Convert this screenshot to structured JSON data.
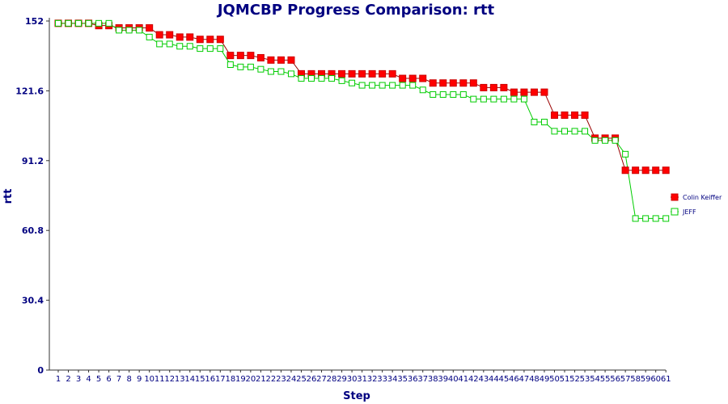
{
  "chart_data": {
    "type": "line",
    "title": "JQMCBP Progress Comparison: rtt",
    "xlabel": "Step",
    "ylabel": "rtt",
    "ylim": [
      0,
      152
    ],
    "yticks": [
      "0",
      "30.4",
      "60.8",
      "91.2",
      "121.6",
      "152"
    ],
    "ytick_values": [
      0,
      30.4,
      60.8,
      91.2,
      121.6,
      152
    ],
    "x": [
      1,
      2,
      3,
      4,
      5,
      6,
      7,
      8,
      9,
      10,
      11,
      12,
      13,
      14,
      15,
      16,
      17,
      18,
      19,
      20,
      21,
      22,
      23,
      24,
      25,
      26,
      27,
      28,
      29,
      30,
      31,
      32,
      33,
      34,
      35,
      36,
      37,
      38,
      39,
      40,
      41,
      42,
      43,
      44,
      45,
      46,
      47,
      48,
      49,
      50,
      51,
      52,
      53,
      54,
      55,
      56,
      57,
      58,
      59,
      60,
      61
    ],
    "x_labels": [
      "1",
      "2",
      "3",
      "4",
      "5",
      "6",
      "7",
      "8",
      "9",
      "10",
      "11",
      "12",
      "13",
      "14",
      "15",
      "16",
      "17",
      "18",
      "19",
      "20",
      "21",
      "22",
      "23",
      "24",
      "25",
      "26",
      "27",
      "28",
      "29",
      "30",
      "31",
      "32",
      "33",
      "34",
      "35",
      "36",
      "37",
      "38",
      "39",
      "40",
      "41",
      "42",
      "43",
      "44",
      "45",
      "46",
      "47",
      "48",
      "49",
      "50",
      "51",
      "52",
      "53",
      "54",
      "55",
      "56",
      "57",
      "58",
      "59",
      "60",
      "61"
    ],
    "legend_position": "right",
    "grid": false,
    "series": [
      {
        "name": "Colin Keiffer",
        "color": "#ff0000",
        "marker_fill": "#ff0000",
        "marker_stroke": "#cc0000",
        "line_color": "#990000",
        "values": [
          151,
          151,
          151,
          151,
          150,
          150,
          149,
          149,
          149,
          149,
          146,
          146,
          145,
          145,
          144,
          144,
          144,
          137,
          137,
          137,
          136,
          135,
          135,
          135,
          129,
          129,
          129,
          129,
          129,
          129,
          129,
          129,
          129,
          129,
          127,
          127,
          127,
          125,
          125,
          125,
          125,
          125,
          123,
          123,
          123,
          121,
          121,
          121,
          121,
          111,
          111,
          111,
          111,
          101,
          101,
          101,
          87,
          87,
          87,
          87,
          87
        ]
      },
      {
        "name": "JEFF",
        "color": "#00cc00",
        "marker_fill": "#ffffff",
        "marker_stroke": "#00cc00",
        "line_color": "#00cc00",
        "values": [
          151,
          151,
          151,
          151,
          151,
          151,
          148,
          148,
          148,
          145,
          142,
          142,
          141,
          141,
          140,
          140,
          140,
          133,
          132,
          132,
          131,
          130,
          130,
          129,
          127,
          127,
          127,
          127,
          126,
          125,
          124,
          124,
          124,
          124,
          124,
          124,
          122,
          120,
          120,
          120,
          120,
          118,
          118,
          118,
          118,
          118,
          118,
          108,
          108,
          104,
          104,
          104,
          104,
          100,
          100,
          100,
          94,
          66,
          66,
          66,
          66
        ]
      }
    ]
  }
}
